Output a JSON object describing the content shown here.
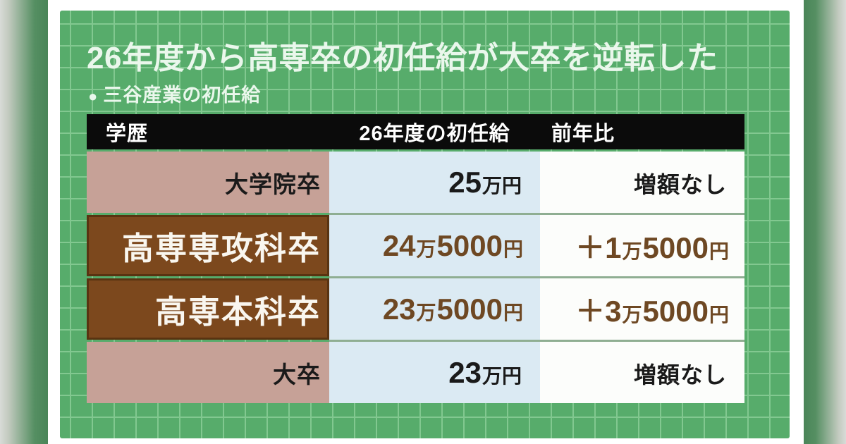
{
  "header": {
    "title": "26年度から高専卒の初任給が大卒を逆転した",
    "subtitle_bullet": "●",
    "subtitle": "三谷産業の初任給"
  },
  "table": {
    "columns": [
      "学歴",
      "26年度の初任給",
      "前年比"
    ],
    "rows": [
      {
        "label": "大学院卒",
        "highlight": false,
        "salary": {
          "big1": "25",
          "small1": "万円"
        },
        "change": {
          "plain": "増額なし"
        }
      },
      {
        "label": "高専専攻科卒",
        "highlight": true,
        "salary": {
          "big1": "24",
          "small1": "万",
          "big2": "5000",
          "small2": "円"
        },
        "change": {
          "big1": "＋1",
          "small1": "万",
          "big2": "5000",
          "small2": "円"
        }
      },
      {
        "label": "高専本科卒",
        "highlight": true,
        "salary": {
          "big1": "23",
          "small1": "万",
          "big2": "5000",
          "small2": "円"
        },
        "change": {
          "big1": "＋3",
          "small1": "万",
          "big2": "5000",
          "small2": "円"
        }
      },
      {
        "label": "大卒",
        "highlight": false,
        "salary": {
          "big1": "23",
          "small1": "万円"
        },
        "change": {
          "plain": "増額なし"
        }
      }
    ]
  },
  "chart_data": {
    "type": "table",
    "title": "26年度から高専卒の初任給が大卒を逆転した",
    "subtitle": "三谷産業の初任給",
    "columns": [
      "学歴",
      "26年度の初任給",
      "前年比"
    ],
    "rows": [
      [
        "大学院卒",
        "25万円",
        "増額なし"
      ],
      [
        "高専専攻科卒",
        "24万5000円",
        "＋1万5000円"
      ],
      [
        "高専本科卒",
        "23万5000円",
        "＋3万5000円"
      ],
      [
        "大卒",
        "23万円",
        "増額なし"
      ]
    ],
    "salary_yen": [
      250000,
      245000,
      235000,
      230000
    ],
    "change_yen": [
      0,
      15000,
      35000,
      0
    ],
    "highlighted_rows": [
      "高専専攻科卒",
      "高専本科卒"
    ]
  },
  "colors": {
    "page_bg": "#ffffff",
    "board_green": "#57ac6b",
    "grid_line": "#82c890",
    "bar_gray": "#d8dbd7",
    "bar_green": "#4a8558",
    "header_bg": "#0b0b0b",
    "header_text": "#ffffff",
    "edu_bg": "#c6a197",
    "highlight_bg": "#7c481d",
    "highlight_border": "#46280a",
    "highlight_text": "#f9f6ef",
    "salary_bg": "#dbeaf3",
    "change_bg": "#fcfdfb",
    "separator": "#8fae92",
    "value_dark": "#1a1a1a",
    "value_brown": "#6e4823",
    "title_text": "#eaf7ec"
  }
}
